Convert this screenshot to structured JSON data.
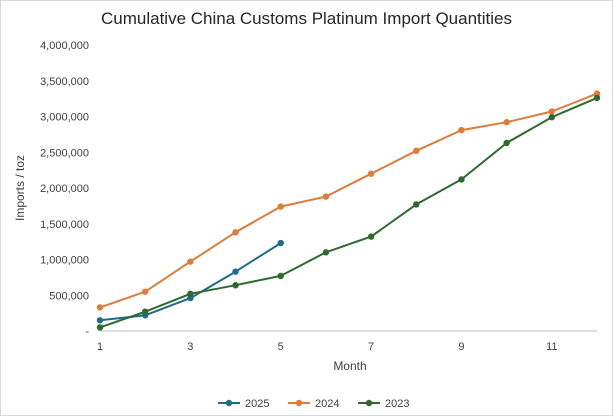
{
  "chart_data": {
    "type": "line",
    "title": "Cumulative China Customs Platinum Import Quantities",
    "xlabel": "Month",
    "ylabel": "Imports / toz",
    "xlim": [
      1,
      12
    ],
    "ylim": [
      0,
      4000000
    ],
    "x_ticks": [
      1,
      3,
      5,
      7,
      9,
      11
    ],
    "y_ticks": [
      {
        "value": 0,
        "label": "-"
      },
      {
        "value": 500000,
        "label": "500,000"
      },
      {
        "value": 1000000,
        "label": "1,000,000"
      },
      {
        "value": 1500000,
        "label": "1,500,000"
      },
      {
        "value": 2000000,
        "label": "2,000,000"
      },
      {
        "value": 2500000,
        "label": "2,500,000"
      },
      {
        "value": 3000000,
        "label": "3,000,000"
      },
      {
        "value": 3500000,
        "label": "3,500,000"
      },
      {
        "value": 4000000,
        "label": "4,000,000"
      }
    ],
    "grid": false,
    "legend_position": "bottom",
    "series": [
      {
        "name": "2025",
        "color": "#1f6b8c",
        "x": [
          1,
          2,
          3,
          4,
          5
        ],
        "values": [
          150000,
          220000,
          460000,
          830000,
          1230000
        ]
      },
      {
        "name": "2024",
        "color": "#e07b39",
        "x": [
          1,
          2,
          3,
          4,
          5,
          6,
          7,
          8,
          9,
          10,
          11,
          12
        ],
        "values": [
          330000,
          550000,
          970000,
          1380000,
          1740000,
          1880000,
          2200000,
          2520000,
          2810000,
          2920000,
          3070000,
          3320000
        ]
      },
      {
        "name": "2023",
        "color": "#2d6a2d",
        "x": [
          1,
          2,
          3,
          4,
          5,
          6,
          7,
          8,
          9,
          10,
          11,
          12
        ],
        "values": [
          50000,
          270000,
          520000,
          640000,
          770000,
          1100000,
          1320000,
          1770000,
          2120000,
          2630000,
          2990000,
          3260000
        ]
      }
    ]
  }
}
